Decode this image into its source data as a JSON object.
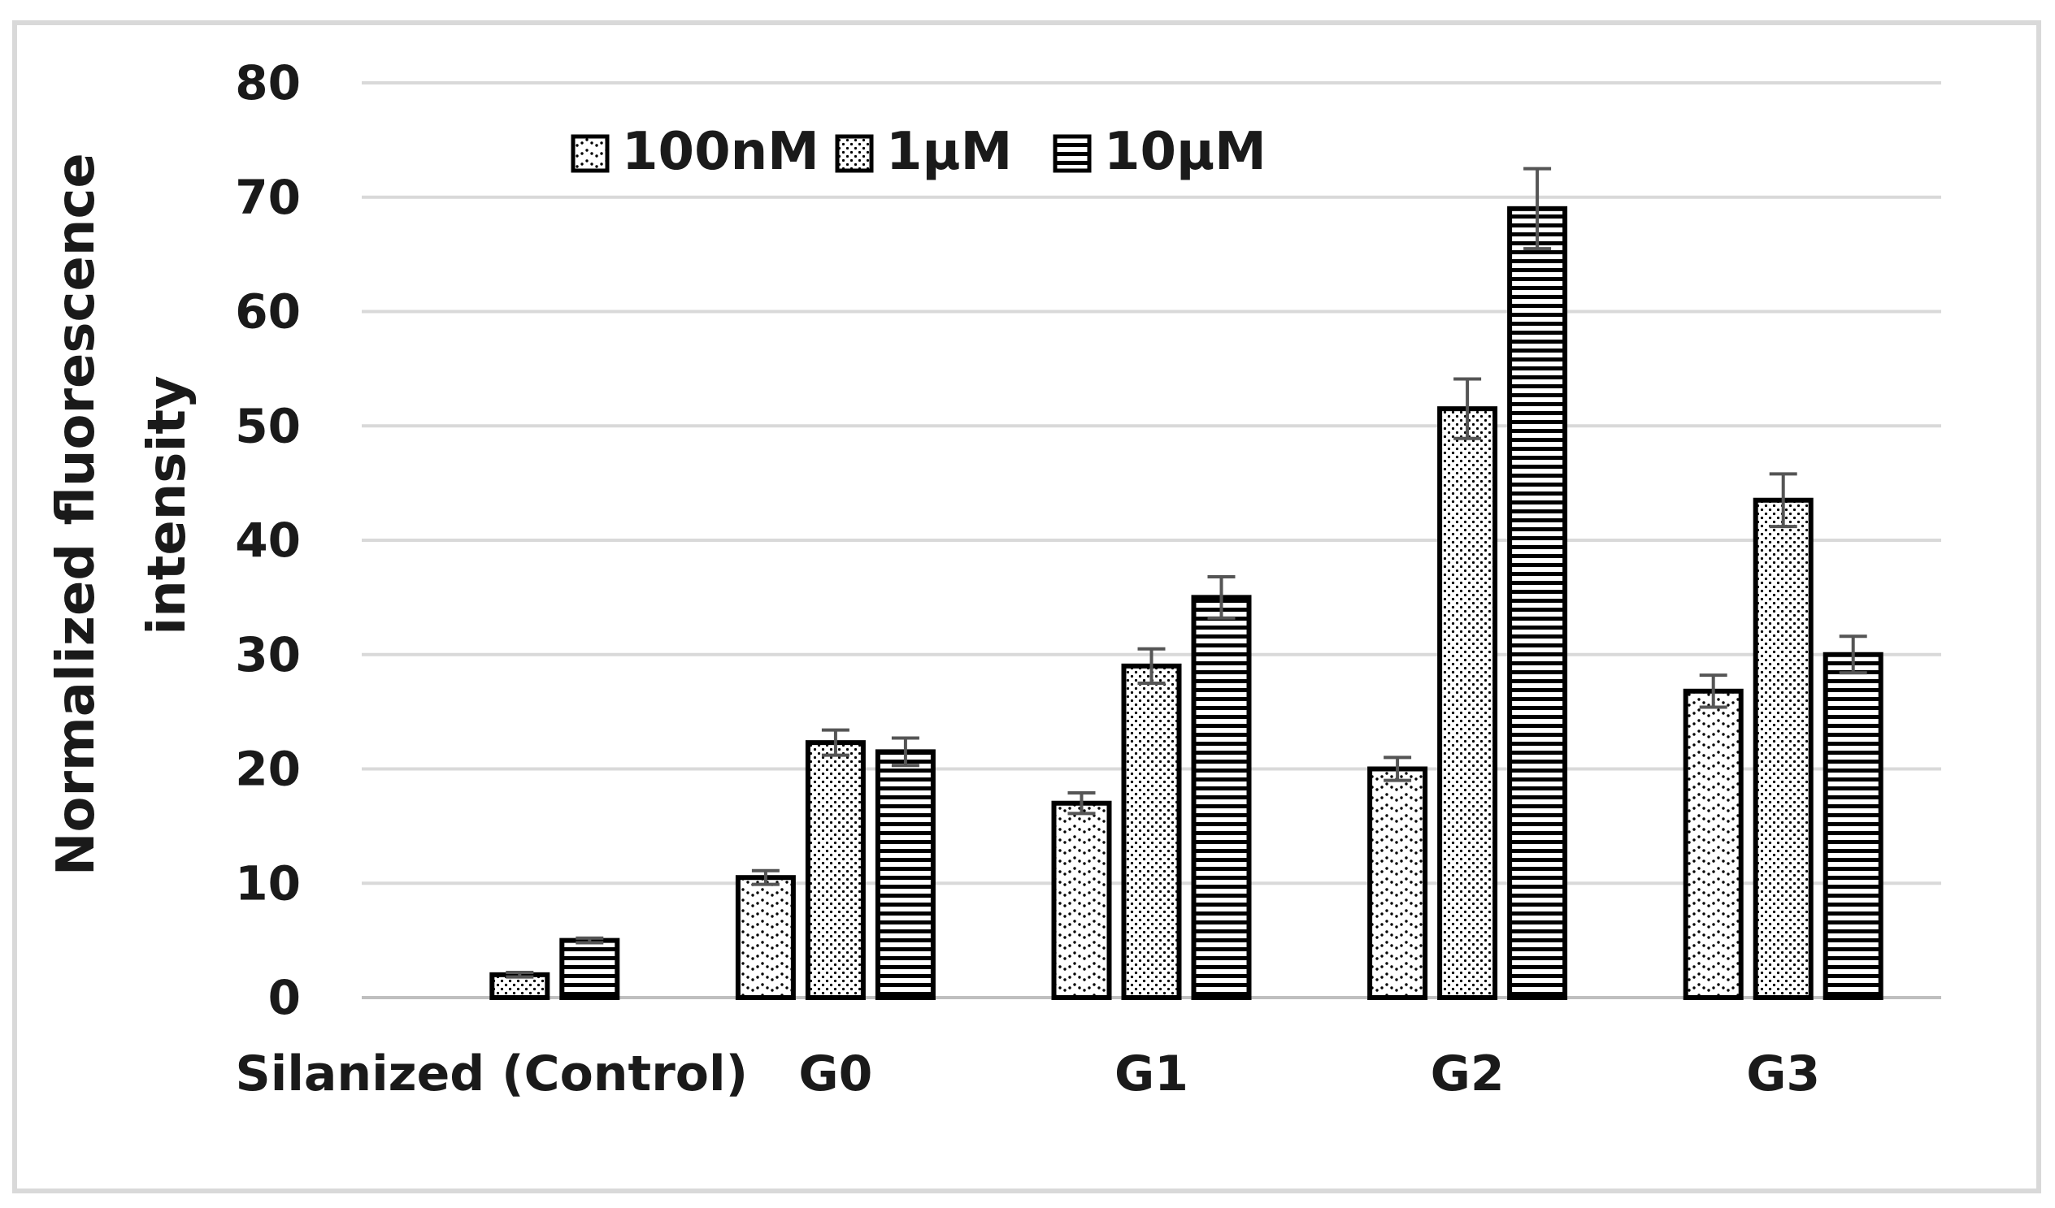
{
  "chart_data": {
    "type": "bar",
    "title": "",
    "xlabel": "",
    "ylabel": "Normalized fluorescence intensity",
    "ylabel_lines": [
      "Normalized fluorescence",
      "intensity"
    ],
    "ylim": [
      0,
      80
    ],
    "yticks": [
      0,
      10,
      20,
      30,
      40,
      50,
      60,
      70,
      80
    ],
    "grid": true,
    "legend_position": "top-center",
    "categories": [
      "Silanized (Control)",
      "G0",
      "G1",
      "G2",
      "G3"
    ],
    "series": [
      {
        "name": "100nM",
        "pattern": "wave-dots",
        "values": [
          0,
          10.5,
          17,
          20,
          26.8
        ],
        "errors": [
          0,
          0.6,
          0.9,
          1.0,
          1.4
        ]
      },
      {
        "name": "1μM",
        "pattern": "dots",
        "values": [
          2,
          22.3,
          29,
          51.5,
          43.5
        ],
        "errors": [
          0.2,
          1.1,
          1.5,
          2.6,
          2.3
        ]
      },
      {
        "name": "10μM",
        "pattern": "horizontal-lines",
        "values": [
          5,
          21.5,
          35,
          69,
          30
        ],
        "errors": [
          0.2,
          1.2,
          1.8,
          3.5,
          1.6
        ]
      }
    ],
    "colors": {
      "grid": "#d9d9d9",
      "bar_outline": "#000000",
      "error_bar": "#555555",
      "frame": "#d9d9d9",
      "text": "#1a1a1a"
    }
  }
}
